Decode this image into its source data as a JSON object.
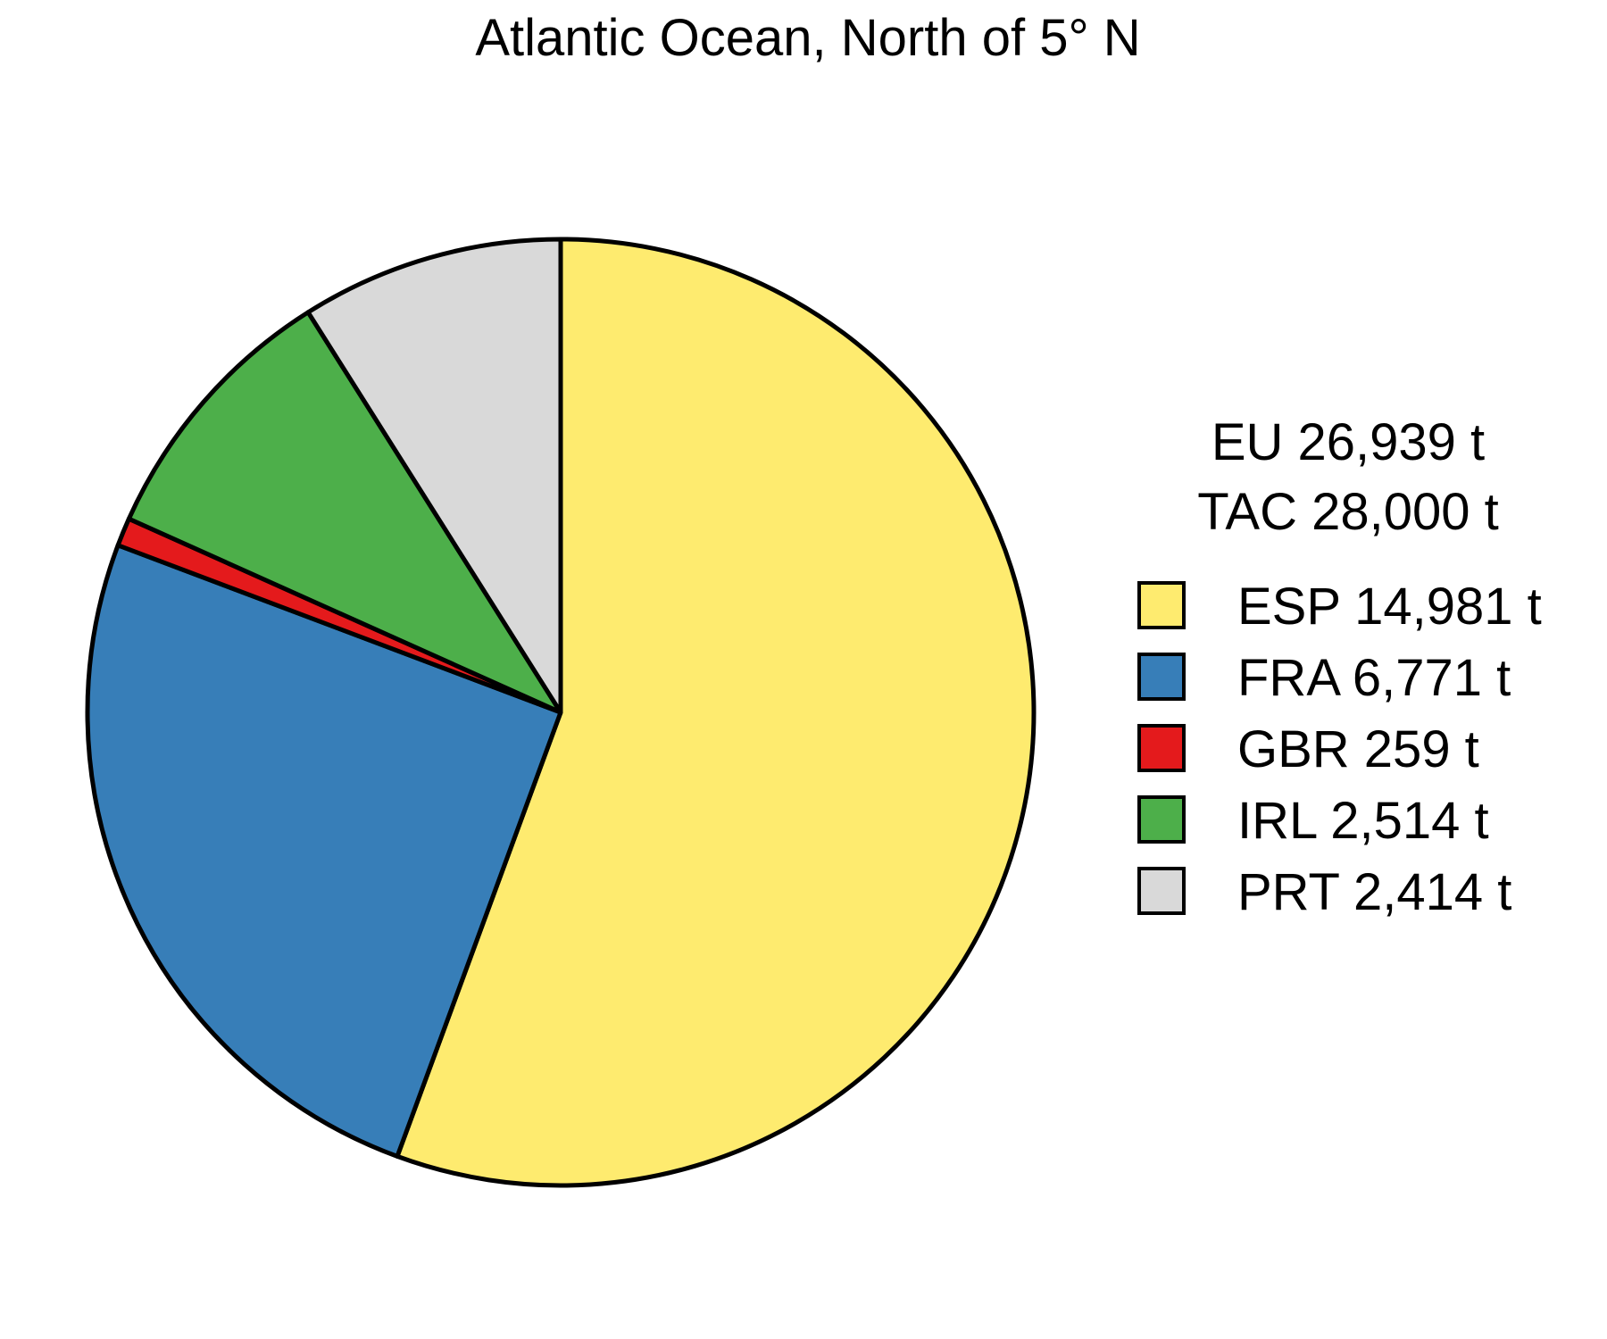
{
  "chart_data": {
    "type": "pie",
    "title": "Atlantic Ocean, North of 5° N",
    "summary": [
      "EU 26,939 t",
      "TAC 28,000 t"
    ],
    "slices": [
      {
        "name": "ESP",
        "value": 14981,
        "label": "ESP 14,981 t",
        "color": "#FEEB6F"
      },
      {
        "name": "FRA",
        "value": 6771,
        "label": "FRA 6,771 t",
        "color": "#377EB8"
      },
      {
        "name": "GBR",
        "value": 259,
        "label": "GBR 259 t",
        "color": "#E41A1C"
      },
      {
        "name": "IRL",
        "value": 2514,
        "label": "IRL 2,514 t",
        "color": "#4DAF4A"
      },
      {
        "name": "PRT",
        "value": 2414,
        "label": "PRT 2,414 t",
        "color": "#D9D9D9"
      }
    ],
    "start": "12 o'clock",
    "direction": "clockwise",
    "legend_position": "right"
  }
}
